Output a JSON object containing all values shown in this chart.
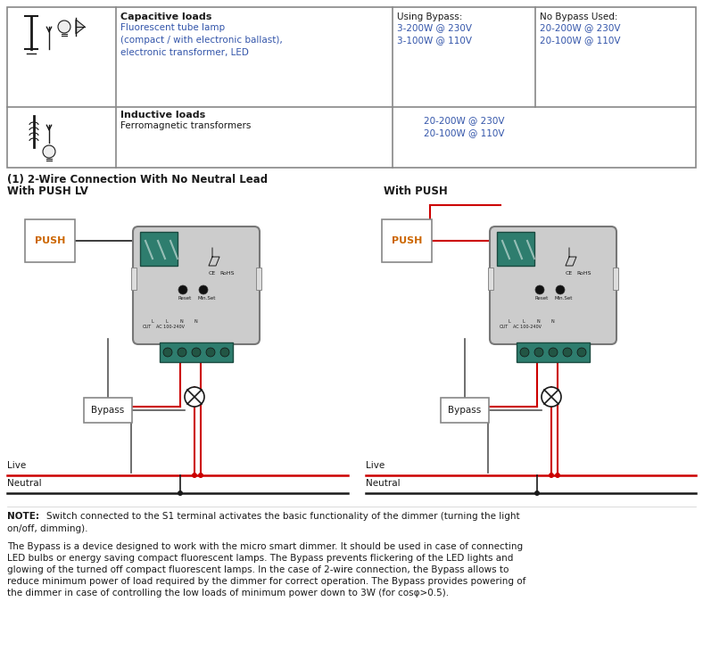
{
  "title_table": "(1) 2-Wire Connection With No Neutral Lead",
  "subtitle_left": "With PUSH LV",
  "subtitle_right": "With PUSH",
  "note_text": "NOTE: Switch connected to the S1 terminal activates the basic functionality of the dimmer (turning the light\non/off, dimming).",
  "bypass_text": "The Bypass is a device designed to work with the micro smart dimmer. It should be used in case of connecting\nLED bulbs or energy saving compact fluorescent lamps. The Bypass prevents flickering of the LED lights and\nglowing of the turned off compact fluorescent lamps. In the case of 2-wire connection, the Bypass allows to\nreduce minimum power of load required by the dimmer for correct operation. The Bypass provides powering of\nthe dimmer in case of controlling the low loads of minimum power down to 3W (for cosφ>0.5).",
  "table": {
    "col1_header": "",
    "col2_header": "Capacitive loads",
    "col3_header": "Using Bypass:",
    "col4_header": "No Bypass Used:",
    "row1_col2": "Fluorescent tube lamp\n(compact / with electronic ballast),\nelectronic transformer, LED",
    "row1_col3": "3-200W @ 230V\n3-100W @ 110V",
    "row1_col4": "20-200W @ 230V\n20-100W @ 110V",
    "row2_col2_header": "Inductive loads",
    "row2_col2": "Ferromagnetic transformers",
    "row2_col3": "20-200W @ 230V\n20-100W @ 110V"
  },
  "colors": {
    "red": "#cc0000",
    "black": "#1a1a1a",
    "teal": "#2e7d6e",
    "gray_dark": "#555555",
    "gray_light": "#aaaaaa",
    "gray_box": "#888888",
    "blue_text": "#3355aa",
    "table_border": "#888888",
    "white": "#ffffff",
    "bg": "#ffffff"
  }
}
